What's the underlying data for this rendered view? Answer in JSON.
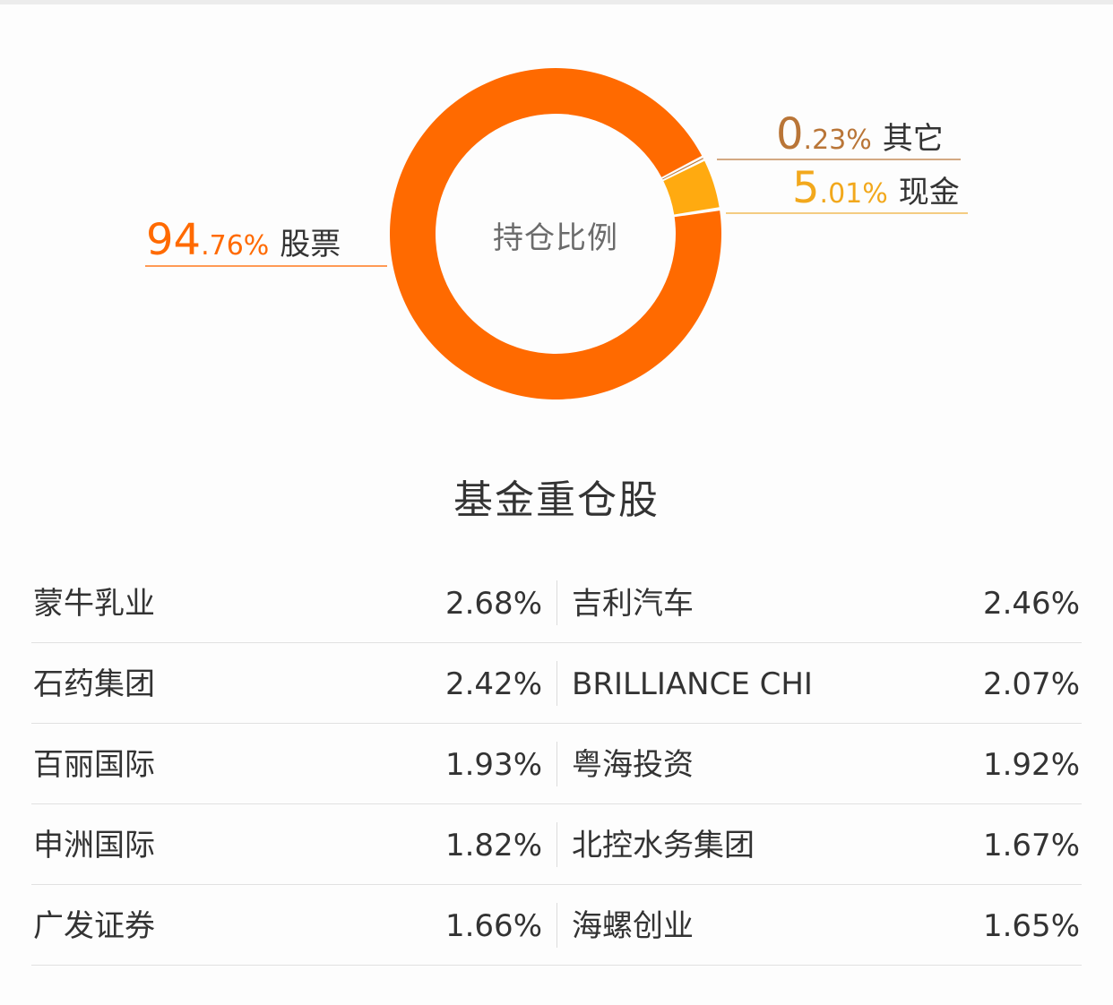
{
  "chart_data": {
    "type": "pie",
    "variant": "donut",
    "title": "持仓比例",
    "slices": [
      {
        "label": "股票",
        "value": 94.76,
        "display_int": "94",
        "display_dec": ".76%",
        "color": "#ff6a00"
      },
      {
        "label": "现金",
        "value": 5.01,
        "display_int": "5",
        "display_dec": ".01%",
        "color": "#ffaa10"
      },
      {
        "label": "其它",
        "value": 0.23,
        "display_int": "0",
        "display_dec": ".23%",
        "color": "#b97537"
      }
    ]
  },
  "holdings": {
    "title": "基金重仓股",
    "rows": [
      {
        "left_name": "蒙牛乳业",
        "left_pct": "2.68%",
        "right_name": "吉利汽车",
        "right_pct": "2.46%"
      },
      {
        "left_name": "石药集团",
        "left_pct": "2.42%",
        "right_name": "BRILLIANCE CHI",
        "right_pct": "2.07%"
      },
      {
        "left_name": "百丽国际",
        "left_pct": "1.93%",
        "right_name": "粤海投资",
        "right_pct": "1.92%"
      },
      {
        "left_name": "申洲国际",
        "left_pct": "1.82%",
        "right_name": "北控水务集团",
        "right_pct": "1.67%"
      },
      {
        "left_name": "广发证券",
        "left_pct": "1.66%",
        "right_name": "海螺创业",
        "right_pct": "1.65%"
      }
    ]
  }
}
